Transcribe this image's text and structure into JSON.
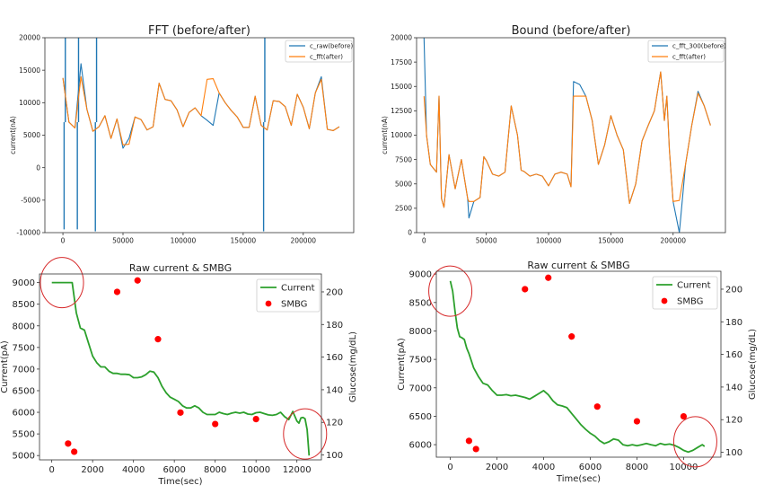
{
  "chart_data": [
    {
      "type": "line",
      "title": "FFT (before/after)",
      "xlabel": "",
      "ylabel": "current(nA)",
      "xlim": [
        -15000,
        242000
      ],
      "ylim": [
        -10000,
        20000
      ],
      "xticks": [
        0,
        50000,
        100000,
        150000,
        200000
      ],
      "yticks": [
        -10000,
        -5000,
        0,
        5000,
        10000,
        15000,
        20000
      ],
      "legend_position": "top-right",
      "series": [
        {
          "name": "c_raw(before)",
          "color": "#1f77b4",
          "x": [
            0,
            5000,
            10000,
            15000,
            20000,
            25000,
            30000,
            35000,
            40000,
            45000,
            50000,
            55000,
            60000,
            65000,
            70000,
            75000,
            80000,
            85000,
            90000,
            95000,
            100000,
            105000,
            110000,
            115000,
            120000,
            125000,
            130000,
            135000,
            140000,
            145000,
            150000,
            155000,
            160000,
            165000,
            170000,
            175000,
            180000,
            185000,
            190000,
            195000,
            200000,
            205000,
            210000,
            215000,
            220000,
            225000,
            230000
          ],
          "values": [
            13800,
            7000,
            6100,
            16000,
            9000,
            5600,
            6300,
            8000,
            4500,
            7500,
            3000,
            4500,
            7800,
            7400,
            5800,
            6300,
            13000,
            10500,
            10300,
            8900,
            6300,
            8500,
            9200,
            8000,
            7300,
            6500,
            11500,
            10000,
            8800,
            7800,
            6200,
            6200,
            11000,
            6500,
            5800,
            10300,
            10200,
            9400,
            6500,
            11300,
            9300,
            6000,
            11500,
            14000,
            5900,
            5700,
            6300
          ],
          "spikes": [
            {
              "x": 1000,
              "y": -9500
            },
            {
              "x": 2000,
              "y": 20000
            },
            {
              "x": 12000,
              "y": -9500
            },
            {
              "x": 13000,
              "y": 20000
            },
            {
              "x": 27000,
              "y": -9800
            },
            {
              "x": 28000,
              "y": 20000
            },
            {
              "x": 167000,
              "y": -9800
            },
            {
              "x": 168000,
              "y": 20000
            }
          ]
        },
        {
          "name": "c_fft(after)",
          "color": "#ff7f0e",
          "x": [
            0,
            5000,
            10000,
            15000,
            20000,
            25000,
            30000,
            35000,
            40000,
            45000,
            50000,
            55000,
            60000,
            65000,
            70000,
            75000,
            80000,
            85000,
            90000,
            95000,
            100000,
            105000,
            110000,
            115000,
            120000,
            125000,
            130000,
            135000,
            140000,
            145000,
            150000,
            155000,
            160000,
            165000,
            170000,
            175000,
            180000,
            185000,
            190000,
            195000,
            200000,
            205000,
            210000,
            215000,
            220000,
            225000,
            230000
          ],
          "values": [
            13800,
            7000,
            6100,
            14000,
            9000,
            5600,
            6300,
            8000,
            4500,
            7500,
            3500,
            3600,
            7800,
            7400,
            5800,
            6300,
            13000,
            10500,
            10300,
            8900,
            6300,
            8500,
            9200,
            8000,
            13600,
            13700,
            11500,
            10000,
            8800,
            7800,
            6200,
            6200,
            11000,
            6500,
            5800,
            10300,
            10200,
            9400,
            6500,
            11300,
            9300,
            6000,
            11500,
            13600,
            5900,
            5700,
            6300
          ]
        }
      ]
    },
    {
      "type": "line",
      "title": "Bound (before/after)",
      "xlabel": "",
      "ylabel": "current(nA)",
      "xlim": [
        -6000,
        242000
      ],
      "ylim": [
        0,
        20000
      ],
      "xticks": [
        0,
        50000,
        100000,
        150000,
        200000
      ],
      "yticks": [
        0,
        2500,
        5000,
        7500,
        10000,
        12500,
        15000,
        17500,
        20000
      ],
      "legend_position": "top-right",
      "series": [
        {
          "name": "c_fft_300(before)",
          "color": "#1f77b4",
          "x": [
            0,
            2000,
            5000,
            10000,
            12000,
            14000,
            16000,
            20000,
            25000,
            30000,
            35000,
            36000,
            40000,
            45000,
            48000,
            50000,
            55000,
            60000,
            65000,
            70000,
            75000,
            78000,
            80000,
            85000,
            90000,
            95000,
            100000,
            105000,
            110000,
            115000,
            118000,
            120000,
            125000,
            130000,
            135000,
            140000,
            145000,
            150000,
            155000,
            160000,
            165000,
            170000,
            175000,
            180000,
            185000,
            190000,
            193000,
            195000,
            197000,
            200000,
            205000,
            210000,
            215000,
            220000,
            225000,
            230000
          ],
          "values": [
            20000,
            10000,
            7000,
            6200,
            14000,
            3500,
            2600,
            8000,
            4500,
            7500,
            3500,
            1500,
            3200,
            3600,
            7800,
            7400,
            6000,
            5800,
            6200,
            13000,
            10000,
            6400,
            6300,
            5800,
            6000,
            5800,
            4800,
            6000,
            6200,
            6000,
            4700,
            15500,
            15200,
            14000,
            11500,
            7000,
            9000,
            12000,
            10000,
            8500,
            3000,
            5000,
            9400,
            11000,
            12500,
            16500,
            11500,
            14000,
            8500,
            3200,
            0,
            7000,
            11000,
            14500,
            13000,
            11000
          ]
        },
        {
          "name": "c_fft(after)",
          "color": "#ff7f0e",
          "x": [
            0,
            2000,
            5000,
            10000,
            12000,
            14000,
            16000,
            20000,
            25000,
            30000,
            35000,
            36000,
            40000,
            45000,
            48000,
            50000,
            55000,
            60000,
            65000,
            70000,
            75000,
            78000,
            80000,
            85000,
            90000,
            95000,
            100000,
            105000,
            110000,
            115000,
            118000,
            120000,
            125000,
            130000,
            135000,
            140000,
            145000,
            150000,
            155000,
            160000,
            165000,
            170000,
            175000,
            180000,
            185000,
            190000,
            193000,
            195000,
            197000,
            200000,
            205000,
            210000,
            215000,
            220000,
            225000,
            230000
          ],
          "values": [
            14000,
            10000,
            7000,
            6200,
            14000,
            3500,
            2600,
            8000,
            4500,
            7500,
            3500,
            3200,
            3200,
            3600,
            7800,
            7400,
            6000,
            5800,
            6200,
            13000,
            10000,
            6400,
            6300,
            5800,
            6000,
            5800,
            4800,
            6000,
            6200,
            6000,
            4700,
            14000,
            14000,
            14000,
            11500,
            7000,
            9000,
            12000,
            10000,
            8500,
            3000,
            5000,
            9400,
            11000,
            12500,
            16500,
            11500,
            14000,
            8500,
            3200,
            3300,
            7000,
            11000,
            14300,
            13000,
            11000
          ]
        }
      ]
    },
    {
      "type": "line",
      "title": "Raw current & SMBG",
      "xlabel": "Time(sec)",
      "ylabel": "Current(pA)",
      "y2label": "Glucose(mg/dL)",
      "xlim": [
        -600,
        13200
      ],
      "ylim": [
        4900,
        9200
      ],
      "y2lim": [
        97,
        211
      ],
      "xticks": [
        0,
        2000,
        4000,
        6000,
        8000,
        10000,
        12000
      ],
      "yticks": [
        5000,
        5500,
        6000,
        6500,
        7000,
        7500,
        8000,
        8500,
        9000
      ],
      "y2ticks": [
        100,
        120,
        140,
        160,
        180,
        200
      ],
      "legend_position": "top-right",
      "series": [
        {
          "name": "Current",
          "color": "#2ca02c",
          "x": [
            0,
            200,
            400,
            600,
            800,
            1000,
            1200,
            1400,
            1600,
            1800,
            2000,
            2200,
            2400,
            2600,
            2800,
            3000,
            3200,
            3400,
            3600,
            3800,
            4000,
            4200,
            4400,
            4600,
            4800,
            5000,
            5200,
            5400,
            5600,
            5800,
            6000,
            6200,
            6400,
            6600,
            6800,
            7000,
            7200,
            7400,
            7600,
            7800,
            8000,
            8200,
            8400,
            8600,
            8800,
            9000,
            9200,
            9400,
            9600,
            9800,
            10000,
            10200,
            10400,
            10600,
            10800,
            11000,
            11200,
            11400,
            11600,
            11800,
            12000,
            12100,
            12200,
            12300,
            12400,
            12500,
            12600
          ],
          "values": [
            9000,
            9000,
            9000,
            9000,
            9000,
            9000,
            8300,
            7950,
            7900,
            7600,
            7300,
            7150,
            7050,
            7050,
            6950,
            6900,
            6900,
            6880,
            6880,
            6870,
            6800,
            6800,
            6820,
            6870,
            6950,
            6930,
            6800,
            6600,
            6450,
            6350,
            6300,
            6250,
            6150,
            6100,
            6100,
            6150,
            6100,
            6000,
            5950,
            5950,
            5950,
            6000,
            5970,
            5950,
            5980,
            6000,
            5980,
            6000,
            5960,
            5950,
            5990,
            6000,
            5970,
            5940,
            5930,
            5950,
            6000,
            5900,
            5830,
            6020,
            5800,
            5750,
            5870,
            5880,
            5850,
            5600,
            5000
          ]
        },
        {
          "name": "SMBG",
          "color": "#ff0000",
          "marker": "dot",
          "axis": "right",
          "x": [
            800,
            1100,
            3200,
            4200,
            5200,
            6300,
            8000,
            10000
          ],
          "values": [
            107,
            102,
            200,
            207,
            171,
            126,
            119,
            122
          ]
        }
      ],
      "annotations": [
        {
          "type": "circle",
          "x": 500,
          "y": 9000
        },
        {
          "type": "circle",
          "x": 12400,
          "y": 5500
        }
      ]
    },
    {
      "type": "line",
      "title": "Raw current & SMBG",
      "xlabel": "Time(sec)",
      "ylabel": "Current(pA)",
      "y2label": "Glucose(mg/dL)",
      "xlim": [
        -600,
        11600
      ],
      "ylim": [
        5780,
        9050
      ],
      "y2lim": [
        97,
        211
      ],
      "xticks": [
        0,
        2000,
        4000,
        6000,
        8000,
        10000
      ],
      "yticks": [
        6000,
        6500,
        7000,
        7500,
        8000,
        8500,
        9000
      ],
      "y2ticks": [
        100,
        120,
        140,
        160,
        180,
        200
      ],
      "legend_position": "top-right",
      "series": [
        {
          "name": "Current",
          "color": "#2ca02c",
          "x": [
            0,
            100,
            200,
            300,
            400,
            500,
            600,
            700,
            800,
            1000,
            1200,
            1400,
            1600,
            1800,
            2000,
            2200,
            2400,
            2600,
            2800,
            3000,
            3200,
            3400,
            3600,
            3800,
            4000,
            4200,
            4400,
            4600,
            4800,
            5000,
            5200,
            5400,
            5600,
            5800,
            6000,
            6200,
            6400,
            6600,
            6800,
            7000,
            7200,
            7400,
            7600,
            7800,
            8000,
            8200,
            8400,
            8600,
            8800,
            9000,
            9200,
            9400,
            9600,
            9800,
            10000,
            10200,
            10400,
            10600,
            10800,
            10900
          ],
          "values": [
            8880,
            8700,
            8350,
            8050,
            7900,
            7880,
            7850,
            7700,
            7600,
            7350,
            7200,
            7080,
            7050,
            6950,
            6870,
            6870,
            6880,
            6860,
            6870,
            6850,
            6830,
            6800,
            6850,
            6900,
            6950,
            6880,
            6770,
            6700,
            6680,
            6650,
            6550,
            6450,
            6350,
            6270,
            6200,
            6150,
            6070,
            6020,
            6050,
            6100,
            6080,
            6000,
            5980,
            6000,
            5980,
            6000,
            6020,
            6000,
            5980,
            6020,
            6000,
            6010,
            5990,
            5950,
            5900,
            5870,
            5900,
            5950,
            6000,
            5970
          ]
        },
        {
          "name": "SMBG",
          "color": "#ff0000",
          "marker": "dot",
          "axis": "right",
          "x": [
            800,
            1100,
            3200,
            4200,
            5200,
            6300,
            8000,
            10000
          ],
          "values": [
            107,
            102,
            200,
            207,
            171,
            128,
            119,
            122
          ]
        }
      ],
      "annotations": [
        {
          "type": "circle",
          "x": 0,
          "y": 8700
        },
        {
          "type": "circle",
          "x": 10500,
          "y": 6050
        }
      ]
    }
  ]
}
